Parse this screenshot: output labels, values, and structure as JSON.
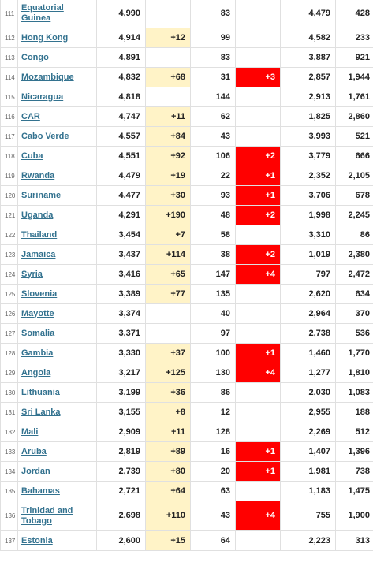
{
  "colors": {
    "new_cases_bg": "#fff3c7",
    "new_deaths_bg": "#ff0000",
    "link": "#33728f"
  },
  "rows": [
    {
      "rank": "111",
      "country": "Equatorial Guinea",
      "total_cases": "4,990",
      "new_cases": "",
      "total_deaths": "83",
      "new_deaths": "",
      "total_recovered": "4,479",
      "active_cases": "428"
    },
    {
      "rank": "112",
      "country": "Hong Kong",
      "total_cases": "4,914",
      "new_cases": "+12",
      "total_deaths": "99",
      "new_deaths": "",
      "total_recovered": "4,582",
      "active_cases": "233"
    },
    {
      "rank": "113",
      "country": "Congo",
      "total_cases": "4,891",
      "new_cases": "",
      "total_deaths": "83",
      "new_deaths": "",
      "total_recovered": "3,887",
      "active_cases": "921"
    },
    {
      "rank": "114",
      "country": "Mozambique",
      "total_cases": "4,832",
      "new_cases": "+68",
      "total_deaths": "31",
      "new_deaths": "+3",
      "total_recovered": "2,857",
      "active_cases": "1,944"
    },
    {
      "rank": "115",
      "country": "Nicaragua",
      "total_cases": "4,818",
      "new_cases": "",
      "total_deaths": "144",
      "new_deaths": "",
      "total_recovered": "2,913",
      "active_cases": "1,761"
    },
    {
      "rank": "116",
      "country": "CAR",
      "total_cases": "4,747",
      "new_cases": "+11",
      "total_deaths": "62",
      "new_deaths": "",
      "total_recovered": "1,825",
      "active_cases": "2,860"
    },
    {
      "rank": "117",
      "country": "Cabo Verde",
      "total_cases": "4,557",
      "new_cases": "+84",
      "total_deaths": "43",
      "new_deaths": "",
      "total_recovered": "3,993",
      "active_cases": "521"
    },
    {
      "rank": "118",
      "country": "Cuba",
      "total_cases": "4,551",
      "new_cases": "+92",
      "total_deaths": "106",
      "new_deaths": "+2",
      "total_recovered": "3,779",
      "active_cases": "666"
    },
    {
      "rank": "119",
      "country": "Rwanda",
      "total_cases": "4,479",
      "new_cases": "+19",
      "total_deaths": "22",
      "new_deaths": "+1",
      "total_recovered": "2,352",
      "active_cases": "2,105"
    },
    {
      "rank": "120",
      "country": "Suriname",
      "total_cases": "4,477",
      "new_cases": "+30",
      "total_deaths": "93",
      "new_deaths": "+1",
      "total_recovered": "3,706",
      "active_cases": "678"
    },
    {
      "rank": "121",
      "country": "Uganda",
      "total_cases": "4,291",
      "new_cases": "+190",
      "total_deaths": "48",
      "new_deaths": "+2",
      "total_recovered": "1,998",
      "active_cases": "2,245"
    },
    {
      "rank": "122",
      "country": "Thailand",
      "total_cases": "3,454",
      "new_cases": "+7",
      "total_deaths": "58",
      "new_deaths": "",
      "total_recovered": "3,310",
      "active_cases": "86"
    },
    {
      "rank": "123",
      "country": "Jamaica",
      "total_cases": "3,437",
      "new_cases": "+114",
      "total_deaths": "38",
      "new_deaths": "+2",
      "total_recovered": "1,019",
      "active_cases": "2,380"
    },
    {
      "rank": "124",
      "country": "Syria",
      "total_cases": "3,416",
      "new_cases": "+65",
      "total_deaths": "147",
      "new_deaths": "+4",
      "total_recovered": "797",
      "active_cases": "2,472"
    },
    {
      "rank": "125",
      "country": "Slovenia",
      "total_cases": "3,389",
      "new_cases": "+77",
      "total_deaths": "135",
      "new_deaths": "",
      "total_recovered": "2,620",
      "active_cases": "634"
    },
    {
      "rank": "126",
      "country": "Mayotte",
      "total_cases": "3,374",
      "new_cases": "",
      "total_deaths": "40",
      "new_deaths": "",
      "total_recovered": "2,964",
      "active_cases": "370"
    },
    {
      "rank": "127",
      "country": "Somalia",
      "total_cases": "3,371",
      "new_cases": "",
      "total_deaths": "97",
      "new_deaths": "",
      "total_recovered": "2,738",
      "active_cases": "536"
    },
    {
      "rank": "128",
      "country": "Gambia",
      "total_cases": "3,330",
      "new_cases": "+37",
      "total_deaths": "100",
      "new_deaths": "+1",
      "total_recovered": "1,460",
      "active_cases": "1,770"
    },
    {
      "rank": "129",
      "country": "Angola",
      "total_cases": "3,217",
      "new_cases": "+125",
      "total_deaths": "130",
      "new_deaths": "+4",
      "total_recovered": "1,277",
      "active_cases": "1,810"
    },
    {
      "rank": "130",
      "country": "Lithuania",
      "total_cases": "3,199",
      "new_cases": "+36",
      "total_deaths": "86",
      "new_deaths": "",
      "total_recovered": "2,030",
      "active_cases": "1,083"
    },
    {
      "rank": "131",
      "country": "Sri Lanka",
      "total_cases": "3,155",
      "new_cases": "+8",
      "total_deaths": "12",
      "new_deaths": "",
      "total_recovered": "2,955",
      "active_cases": "188"
    },
    {
      "rank": "132",
      "country": "Mali",
      "total_cases": "2,909",
      "new_cases": "+11",
      "total_deaths": "128",
      "new_deaths": "",
      "total_recovered": "2,269",
      "active_cases": "512"
    },
    {
      "rank": "133",
      "country": "Aruba",
      "total_cases": "2,819",
      "new_cases": "+89",
      "total_deaths": "16",
      "new_deaths": "+1",
      "total_recovered": "1,407",
      "active_cases": "1,396"
    },
    {
      "rank": "134",
      "country": "Jordan",
      "total_cases": "2,739",
      "new_cases": "+80",
      "total_deaths": "20",
      "new_deaths": "+1",
      "total_recovered": "1,981",
      "active_cases": "738"
    },
    {
      "rank": "135",
      "country": "Bahamas",
      "total_cases": "2,721",
      "new_cases": "+64",
      "total_deaths": "63",
      "new_deaths": "",
      "total_recovered": "1,183",
      "active_cases": "1,475"
    },
    {
      "rank": "136",
      "country": "Trinidad and Tobago",
      "total_cases": "2,698",
      "new_cases": "+110",
      "total_deaths": "43",
      "new_deaths": "+4",
      "total_recovered": "755",
      "active_cases": "1,900"
    },
    {
      "rank": "137",
      "country": "Estonia",
      "total_cases": "2,600",
      "new_cases": "+15",
      "total_deaths": "64",
      "new_deaths": "",
      "total_recovered": "2,223",
      "active_cases": "313"
    }
  ]
}
